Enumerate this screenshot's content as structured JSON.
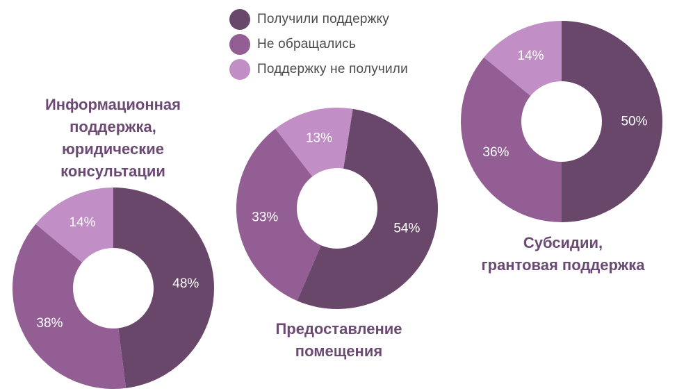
{
  "colors": {
    "received": "#68476a",
    "not_applied": "#925e93",
    "not_received": "#c18fc6",
    "title": "#6b4a73"
  },
  "legend": {
    "items": [
      {
        "label": "Получили поддержку",
        "color": "#68476a"
      },
      {
        "label": "Не обращались",
        "color": "#925e93"
      },
      {
        "label": "Поддержку не получили",
        "color": "#c18fc6"
      }
    ]
  },
  "chart_data": [
    {
      "type": "pie",
      "donut": true,
      "title_lines": [
        "Информационная",
        "поддержка,",
        "юридические",
        "консультации"
      ],
      "categories": [
        "Получили поддержку",
        "Не обращались",
        "Поддержку не получили"
      ],
      "values": [
        48,
        38,
        14
      ],
      "labels": [
        "48%",
        "38%",
        "14%"
      ]
    },
    {
      "type": "pie",
      "donut": true,
      "title_lines": [
        "Предоставление",
        "помещения"
      ],
      "categories": [
        "Получили поддержку",
        "Не обращались",
        "Поддержку не получили"
      ],
      "values": [
        54,
        33,
        13
      ],
      "labels": [
        "54%",
        "33%",
        "13%"
      ]
    },
    {
      "type": "pie",
      "donut": true,
      "title_lines": [
        "Субсидии,",
        "грантовая поддержка"
      ],
      "categories": [
        "Получили поддержку",
        "Не обращались",
        "Поддержку не получили"
      ],
      "values": [
        50,
        36,
        14
      ],
      "labels": [
        "50%",
        "36%",
        "14%"
      ]
    }
  ]
}
